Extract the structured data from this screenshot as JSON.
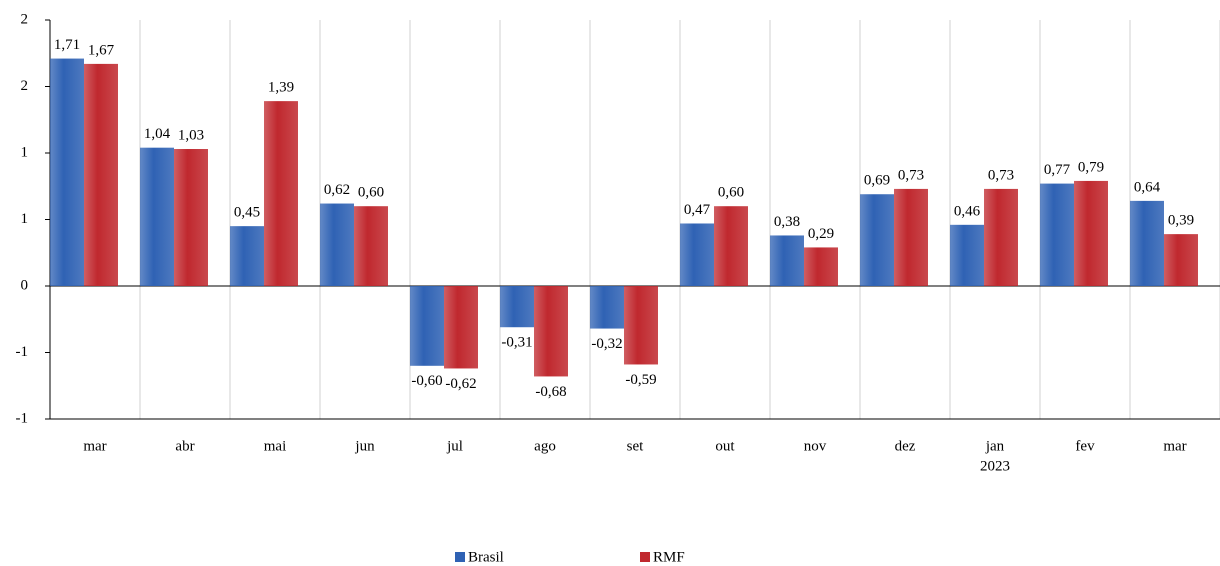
{
  "chart_data": {
    "type": "bar",
    "categories": [
      "mar",
      "abr",
      "mai",
      "jun",
      "jul",
      "ago",
      "set",
      "out",
      "nov",
      "dez",
      "jan",
      "fev",
      "mar"
    ],
    "category_years": [
      null,
      null,
      null,
      null,
      null,
      null,
      null,
      null,
      null,
      null,
      "2023",
      null,
      null
    ],
    "series": [
      {
        "name": "Brasil",
        "color": "#2f62b4",
        "values": [
          1.71,
          1.04,
          0.45,
          0.62,
          -0.6,
          -0.31,
          -0.32,
          0.47,
          0.38,
          0.69,
          0.46,
          0.77,
          0.64
        ],
        "value_labels": [
          "1,71",
          "1,04",
          "0,45",
          "0,62",
          "-0,60",
          "-0,31",
          "-0,32",
          "0,47",
          "0,38",
          "0,69",
          "0,46",
          "0,77",
          "0,64"
        ]
      },
      {
        "name": "RMF",
        "color": "#c0282e",
        "values": [
          1.67,
          1.03,
          1.39,
          0.6,
          -0.62,
          -0.68,
          -0.59,
          0.6,
          0.29,
          0.73,
          0.73,
          0.79,
          0.39
        ],
        "value_labels": [
          "1,67",
          "1,03",
          "1,39",
          "0,60",
          "-0,62",
          "-0,68",
          "-0,59",
          "0,60",
          "0,29",
          "0,73",
          "0,73",
          "0,79",
          "0,39"
        ]
      }
    ],
    "ylim": [
      -1,
      2
    ],
    "yticks": [
      2,
      {
        "value": 1.5,
        "label": "2"
      },
      1,
      {
        "value": 0.5,
        "label": "1"
      },
      0,
      {
        "value": -0.5,
        "label": "-1"
      },
      -1
    ],
    "negative_label_color": "#e3141c",
    "grid": true,
    "legend": "bottom"
  }
}
